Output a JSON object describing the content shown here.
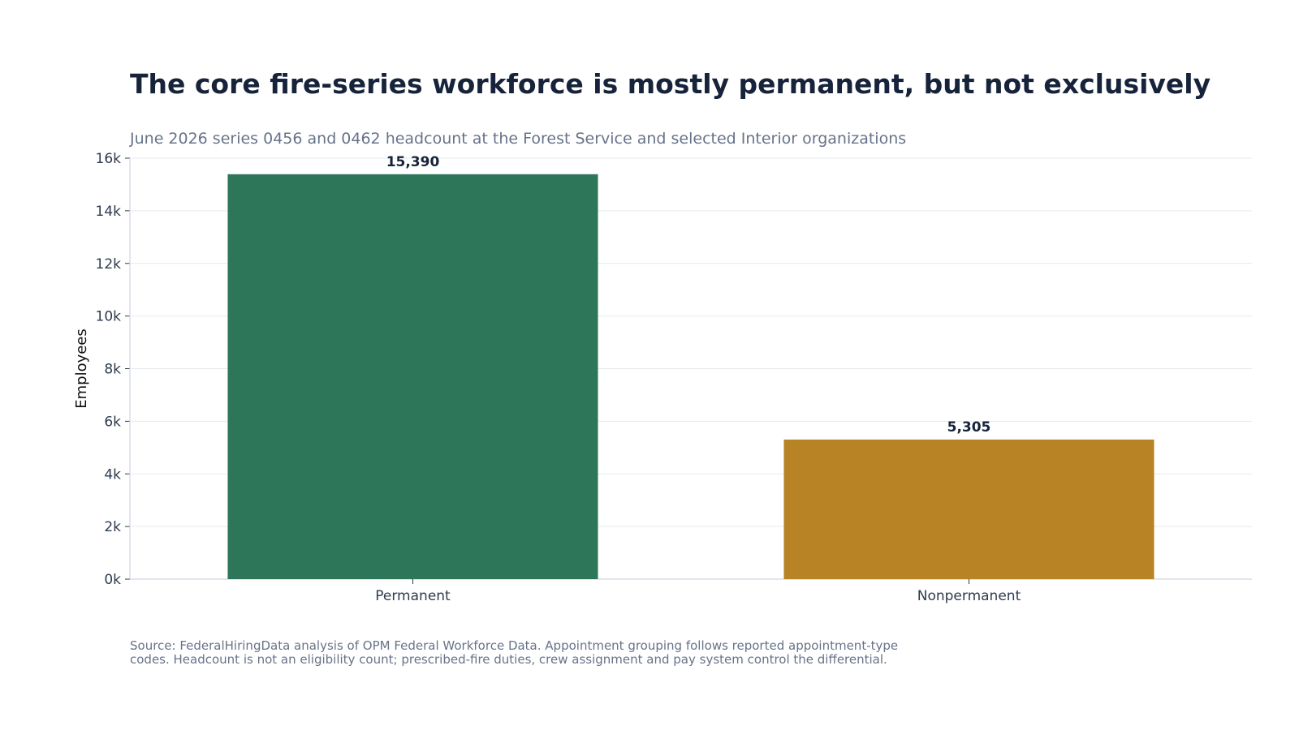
{
  "title": "The core fire-series workforce is mostly permanent, but not exclusively",
  "subtitle": "June 2026 series 0456 and 0462 headcount at the Forest Service and selected Interior organizations",
  "source_lines": [
    "Source: FederalHiringData analysis of OPM Federal Workforce Data. Appointment grouping follows reported appointment-type",
    "codes. Headcount is not an eligibility count; prescribed-fire duties, crew assignment and pay system control the differential."
  ],
  "chart_data": {
    "type": "bar",
    "categories": [
      "Permanent",
      "Nonpermanent"
    ],
    "values": [
      15390,
      5305
    ],
    "value_labels": [
      "15,390",
      "5,305"
    ],
    "colors": [
      "#2e765a",
      "#b78324"
    ],
    "ylabel": "Employees",
    "xlabel": "",
    "ylim": [
      0,
      16000
    ],
    "yticks": [
      0,
      2000,
      4000,
      6000,
      8000,
      10000,
      12000,
      14000,
      16000
    ],
    "ytick_labels": [
      "0k",
      "2k",
      "4k",
      "6k",
      "8k",
      "10k",
      "12k",
      "14k",
      "16k"
    ],
    "grid": true,
    "legend": "none"
  }
}
